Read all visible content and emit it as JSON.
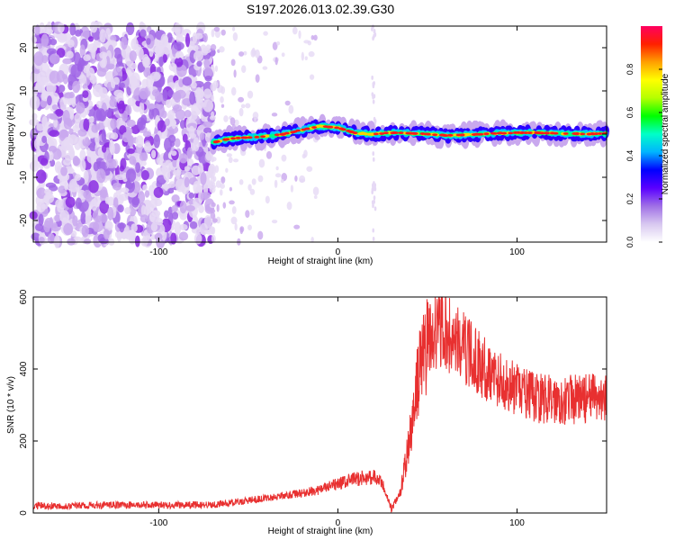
{
  "title": "S197.2026.013.02.39.G30",
  "colors": {
    "snr_line": "#e83030",
    "axis": "#000000",
    "colormap": [
      "#ffffff",
      "#e6d9f5",
      "#c9a8ee",
      "#a066e6",
      "#8a2be2",
      "#2a00ff",
      "#00c8ff",
      "#00ff80",
      "#c8ff00",
      "#ffd000",
      "#ff7a00",
      "#ff1a1a",
      "#ff0066"
    ]
  },
  "chart_data": [
    {
      "type": "heatmap",
      "title": "",
      "xlabel": "Height of straight line (km)",
      "ylabel": "Frequency (Hz)",
      "xlim": [
        -170,
        150
      ],
      "ylim": [
        -25,
        25
      ],
      "xticks": [
        {
          "value": -100,
          "label": "-100"
        },
        {
          "value": 0,
          "label": "0"
        },
        {
          "value": 100,
          "label": "100"
        }
      ],
      "yticks": [
        {
          "value": -20,
          "label": "-20"
        },
        {
          "value": -10,
          "label": "-10"
        },
        {
          "value": 0,
          "label": "0"
        },
        {
          "value": 10,
          "label": "10"
        },
        {
          "value": 20,
          "label": "20"
        }
      ],
      "colorbar": {
        "label": "Normalized spectral amplitude",
        "range": [
          0,
          1
        ],
        "ticks": [
          {
            "value": 0.0,
            "label": "0.0"
          },
          {
            "value": 0.2,
            "label": "0.2"
          },
          {
            "value": 0.4,
            "label": "0.4"
          },
          {
            "value": 0.6,
            "label": "0.6"
          },
          {
            "value": 0.8,
            "label": "0.8"
          }
        ]
      },
      "noise_region_x": [
        -170,
        -70
      ],
      "signal_trace": {
        "x": [
          -70,
          -60,
          -50,
          -40,
          -30,
          -20,
          -10,
          0,
          10,
          20,
          30,
          40,
          50,
          60,
          70,
          80,
          90,
          100,
          110,
          120,
          130,
          140,
          150
        ],
        "freq": [
          -2,
          -1,
          -0.8,
          -0.5,
          0,
          1,
          1.8,
          1.5,
          0.2,
          0,
          0.3,
          0.2,
          0,
          -0.3,
          -0.2,
          0,
          0.2,
          0.3,
          0.3,
          0.2,
          0.1,
          0,
          0.2
        ]
      }
    },
    {
      "type": "line",
      "title": "",
      "xlabel": "Height of straight line (km)",
      "ylabel": "SNR (10 * v/v)",
      "xlim": [
        -170,
        150
      ],
      "ylim": [
        0,
        600
      ],
      "xticks": [
        {
          "value": -100,
          "label": "-100"
        },
        {
          "value": 0,
          "label": "0"
        },
        {
          "value": 100,
          "label": "100"
        }
      ],
      "yticks": [
        {
          "value": 0,
          "label": "0"
        },
        {
          "value": 200,
          "label": "200"
        },
        {
          "value": 400,
          "label": "400"
        },
        {
          "value": 600,
          "label": "600"
        }
      ],
      "series": [
        {
          "name": "SNR",
          "x": [
            -170,
            -150,
            -130,
            -110,
            -90,
            -70,
            -60,
            -50,
            -40,
            -30,
            -20,
            -10,
            0,
            10,
            20,
            25,
            30,
            35,
            40,
            45,
            50,
            55,
            60,
            70,
            80,
            90,
            100,
            110,
            120,
            130,
            140,
            150
          ],
          "y": [
            20,
            20,
            22,
            22,
            22,
            23,
            28,
            35,
            42,
            48,
            55,
            65,
            80,
            95,
            100,
            80,
            10,
            60,
            200,
            380,
            480,
            510,
            500,
            460,
            410,
            370,
            340,
            320,
            315,
            315,
            318,
            320
          ]
        }
      ]
    }
  ]
}
